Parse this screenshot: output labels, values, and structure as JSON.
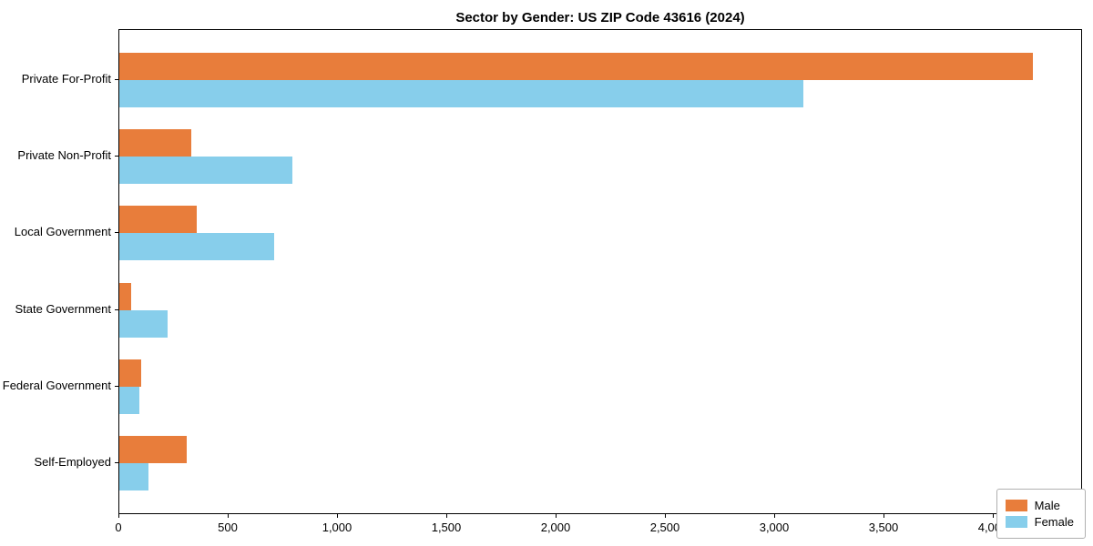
{
  "chart_data": {
    "type": "bar",
    "orientation": "horizontal",
    "title": "Sector by Gender: US ZIP Code 43616 (2024)",
    "categories": [
      "Private For-Profit",
      "Private Non-Profit",
      "Local Government",
      "State Government",
      "Federal Government",
      "Self-Employed"
    ],
    "series": [
      {
        "name": "Male",
        "color": "#e87d3b",
        "values": [
          4180,
          330,
          355,
          55,
          100,
          310
        ]
      },
      {
        "name": "Female",
        "color": "#87ceeb",
        "values": [
          3130,
          790,
          710,
          220,
          90,
          135
        ]
      }
    ],
    "xlabel": "",
    "ylabel": "",
    "xlim": [
      0,
      4400
    ],
    "xticks": [
      0,
      500,
      1000,
      1500,
      2000,
      2500,
      3000,
      3500,
      4000
    ],
    "xtick_labels": [
      "0",
      "500",
      "1,000",
      "1,500",
      "2,000",
      "2,500",
      "3,000",
      "3,500",
      "4,000"
    ],
    "grid": false,
    "legend_position": "lower right"
  }
}
